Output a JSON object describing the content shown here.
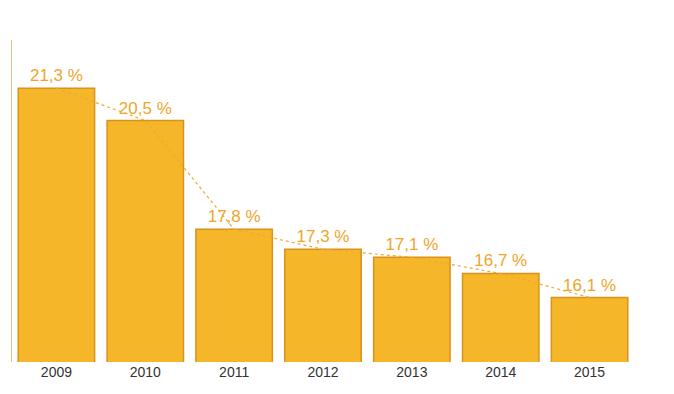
{
  "chart_data": {
    "type": "bar",
    "categories": [
      "2009",
      "2010",
      "2011",
      "2012",
      "2013",
      "2014",
      "2015"
    ],
    "values": [
      21.3,
      20.5,
      17.8,
      17.3,
      17.1,
      16.7,
      16.1
    ],
    "value_labels": [
      "21,3 %",
      "20,5 %",
      "17,8 %",
      "17,3 %",
      "17,1 %",
      "16,7 %",
      "16,1 %"
    ],
    "color": "#f5b62a",
    "ylim": [
      14.5,
      22.5
    ],
    "data_labels": true,
    "tick_labels": "x",
    "line_style": "dotted",
    "grid": false
  }
}
